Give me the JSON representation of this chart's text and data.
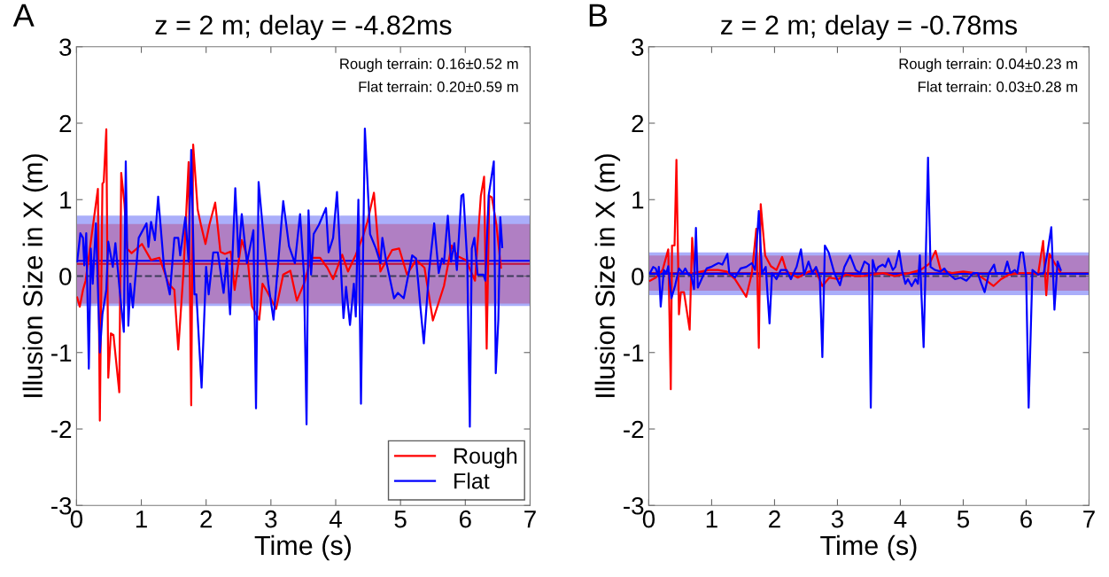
{
  "chart_data": [
    {
      "type": "line",
      "title": "z = 2 m; delay = -4.82ms",
      "xlabel": "Time (s)",
      "ylabel": "Illusion Size in X (m)",
      "annotations": [
        "A",
        "Rough terrain: 0.16±0.52 m",
        "Flat terrain: 0.20±0.59 m"
      ],
      "xlim": [
        0,
        7
      ],
      "xticks": [
        0,
        1,
        2,
        3,
        4,
        5,
        6,
        7
      ],
      "ylim": [
        -3,
        3
      ],
      "yticks": [
        -3,
        -2,
        -1,
        0,
        1,
        2,
        3
      ],
      "grid": false,
      "legend": "bottom right",
      "marker": "none",
      "line_style": "solid",
      "bands": [
        {
          "axis": "y",
          "from": -0.39,
          "to": 0.79,
          "color": "#aaaefa"
        },
        {
          "axis": "y",
          "from": -0.36,
          "to": 0.68,
          "color": "#b07fc3"
        }
      ],
      "ref_lines": [
        {
          "axis": "y",
          "value": 0,
          "color": "#3c3c5a",
          "line_style": "dashed"
        },
        {
          "axis": "y",
          "value": 0.16,
          "color": "#c0103c",
          "line_style": "solid"
        },
        {
          "axis": "y",
          "value": 0.2,
          "color": "#0000ff",
          "line_style": "solid"
        }
      ],
      "series": [
        {
          "name": "Rough",
          "color": "#ff0000",
          "x": [
            0.01,
            0.05,
            0.1,
            0.14,
            0.33,
            0.36,
            0.4,
            0.42,
            0.46,
            0.49,
            0.53,
            0.57,
            0.66,
            0.69,
            0.74,
            0.78,
            0.85,
            1.01,
            1.15,
            1.28,
            1.42,
            1.51,
            1.57,
            1.65,
            1.73,
            1.77,
            1.8,
            1.87,
            1.92,
            1.99,
            2.05,
            2.14,
            2.22,
            2.29,
            2.38,
            2.44,
            2.55,
            2.64,
            2.71,
            2.82,
            2.87,
            2.94,
            3.08,
            3.19,
            3.3,
            3.4,
            3.52,
            3.62,
            3.76,
            3.87,
            3.96,
            4.1,
            4.19,
            4.31,
            4.42,
            4.49,
            4.59,
            4.69,
            4.87,
            4.98,
            5.1,
            5.24,
            5.37,
            5.5,
            5.61,
            5.67,
            5.79,
            5.88,
            6.01,
            6.15,
            6.24,
            6.29,
            6.33,
            6.37,
            6.41,
            6.48,
            6.55
          ],
          "values": [
            -0.28,
            -0.4,
            -0.18,
            -0.06,
            1.14,
            -1.89,
            1.21,
            1.23,
            1.92,
            -1.33,
            -0.75,
            -0.77,
            -1.52,
            1.35,
            0.94,
            0.36,
            0.3,
            0.42,
            0.21,
            0.24,
            -0.1,
            -0.18,
            -0.96,
            0.05,
            1.49,
            -1.69,
            1.72,
            0.87,
            0.67,
            0.42,
            0.67,
            0.96,
            0.32,
            0.29,
            0.32,
            -0.18,
            0.47,
            0.24,
            -0.4,
            -0.57,
            -0.1,
            -0.2,
            -0.43,
            0.02,
            0.07,
            -0.32,
            -0.08,
            0.24,
            0.24,
            0.11,
            -0.04,
            0.28,
            0.06,
            0.28,
            0.52,
            0.71,
            1.09,
            0.06,
            0.34,
            0.36,
            0.02,
            0.21,
            0.11,
            -0.58,
            -0.29,
            -0.13,
            0.4,
            0.26,
            0.21,
            -0.06,
            1.05,
            1.3,
            -0.95,
            1.05,
            1.03,
            0.67,
            0.11
          ]
        },
        {
          "name": "Flat",
          "color": "#0000ff",
          "x": [
            0.01,
            0.06,
            0.1,
            0.12,
            0.15,
            0.19,
            0.22,
            0.25,
            0.3,
            0.36,
            0.4,
            0.46,
            0.49,
            0.56,
            0.6,
            0.67,
            0.73,
            0.76,
            0.8,
            0.83,
            0.87,
            0.96,
            1.08,
            1.11,
            1.15,
            1.21,
            1.26,
            1.35,
            1.44,
            1.51,
            1.57,
            1.6,
            1.68,
            1.73,
            1.77,
            1.82,
            1.85,
            1.93,
            2.0,
            2.04,
            2.11,
            2.18,
            2.27,
            2.32,
            2.37,
            2.45,
            2.5,
            2.55,
            2.63,
            2.73,
            2.77,
            2.81,
            2.87,
            2.96,
            3.04,
            3.19,
            3.28,
            3.37,
            3.45,
            3.51,
            3.55,
            3.58,
            3.62,
            3.66,
            3.74,
            3.85,
            3.89,
            3.96,
            4.02,
            4.12,
            4.16,
            4.22,
            4.28,
            4.31,
            4.35,
            4.39,
            4.45,
            4.53,
            4.62,
            4.69,
            4.72,
            4.78,
            4.9,
            4.96,
            5.05,
            5.18,
            5.24,
            5.31,
            5.36,
            5.44,
            5.52,
            5.59,
            5.64,
            5.67,
            5.73,
            5.78,
            5.83,
            5.87,
            5.94,
            5.97,
            6.03,
            6.07,
            6.1,
            6.14,
            6.19,
            6.28,
            6.31,
            6.36,
            6.44,
            6.47,
            6.51,
            6.54,
            6.57
          ],
          "values": [
            0.19,
            0.56,
            0.5,
            0.14,
            0.56,
            -1.21,
            0.36,
            -0.1,
            0.69,
            -1.0,
            -0.5,
            -0.18,
            0.45,
            0.12,
            0.43,
            -0.22,
            -0.73,
            1.5,
            -0.65,
            -0.1,
            -0.41,
            0.5,
            0.69,
            0.38,
            0.71,
            0.47,
            1.04,
            0.12,
            -0.24,
            0.5,
            0.5,
            0.27,
            0.77,
            0.19,
            1.65,
            -0.24,
            -0.24,
            -1.46,
            0.12,
            -0.24,
            0.31,
            0.31,
            -0.22,
            0.23,
            -0.5,
            1.15,
            0.25,
            0.81,
            0.17,
            0.6,
            -1.73,
            1.23,
            0.67,
            -0.1,
            -0.57,
            0.98,
            0.39,
            0.17,
            0.81,
            0.02,
            -1.94,
            0.86,
            0.02,
            0.55,
            0.67,
            0.89,
            0.31,
            0.5,
            1.1,
            -0.55,
            -0.14,
            -0.64,
            -0.1,
            -0.53,
            1.0,
            -1.67,
            1.93,
            0.55,
            0.36,
            0.17,
            0.5,
            0.19,
            -0.29,
            -0.22,
            -0.29,
            0.27,
            0.23,
            -0.43,
            -0.88,
            0.06,
            0.69,
            0.04,
            0.23,
            0.17,
            0.79,
            0.19,
            0.43,
            0.08,
            1.05,
            1.07,
            0.19,
            -1.97,
            0.36,
            0.5,
            0.02,
            0.02,
            -0.06,
            1.05,
            1.5,
            -1.27,
            -0.57,
            0.77,
            0.38
          ]
        }
      ]
    },
    {
      "type": "line",
      "title": "z = 2 m; delay = -0.78ms",
      "xlabel": "Time (s)",
      "ylabel": "Illusion Size in X (m)",
      "annotations": [
        "B",
        "Rough terrain: 0.04±0.23 m",
        "Flat terrain: 0.03±0.28 m"
      ],
      "xlim": [
        0,
        7
      ],
      "xticks": [
        0,
        1,
        2,
        3,
        4,
        5,
        6,
        7
      ],
      "ylim": [
        -3,
        3
      ],
      "yticks": [
        -3,
        -2,
        -1,
        0,
        1,
        2,
        3
      ],
      "grid": false,
      "marker": "none",
      "line_style": "solid",
      "bands": [
        {
          "axis": "y",
          "from": -0.25,
          "to": 0.31,
          "color": "#aaaefa"
        },
        {
          "axis": "y",
          "from": -0.19,
          "to": 0.27,
          "color": "#b07fc3"
        }
      ],
      "ref_lines": [
        {
          "axis": "y",
          "value": 0,
          "color": "#3c3c5a",
          "line_style": "dashed"
        },
        {
          "axis": "y",
          "value": 0.04,
          "color": "#c0103c",
          "line_style": "solid"
        },
        {
          "axis": "y",
          "value": 0.03,
          "color": "#0000ff",
          "line_style": "solid"
        }
      ],
      "series": [
        {
          "color": "#ff0000",
          "x": [
            0.02,
            0.11,
            0.22,
            0.31,
            0.35,
            0.37,
            0.41,
            0.44,
            0.48,
            0.51,
            0.56,
            0.65,
            0.69,
            0.73,
            0.83,
            0.96,
            1.1,
            1.24,
            1.37,
            1.55,
            1.64,
            1.71,
            1.75,
            1.78,
            1.85,
            1.94,
            2.03,
            2.12,
            2.19,
            2.37,
            2.55,
            2.65,
            2.76,
            2.87,
            3.01,
            3.14,
            3.28,
            3.41,
            3.55,
            3.73,
            3.91,
            4.14,
            4.32,
            4.46,
            4.56,
            4.64,
            4.82,
            5.0,
            5.19,
            5.37,
            5.48,
            5.6,
            5.73,
            5.92,
            6.1,
            6.19,
            6.27,
            6.32,
            6.37,
            6.46,
            6.54
          ],
          "values": [
            -0.06,
            -0.02,
            0.08,
            0.35,
            -1.48,
            0.4,
            0.4,
            1.52,
            -0.5,
            -0.21,
            -0.21,
            -0.7,
            0.5,
            0.04,
            0.06,
            0.08,
            0.08,
            0.06,
            -0.04,
            -0.27,
            0.04,
            0.62,
            -0.94,
            0.94,
            0.27,
            0.13,
            0.08,
            0.25,
            0.06,
            -0.02,
            0.06,
            0.08,
            -0.13,
            -0.02,
            -0.04,
            0.02,
            0.0,
            0.0,
            0.02,
            0.04,
            0.0,
            0.04,
            0.08,
            0.16,
            0.33,
            0.08,
            0.04,
            0.06,
            0.04,
            -0.06,
            -0.13,
            -0.04,
            0.02,
            0.04,
            0.04,
            0.02,
            0.46,
            -0.25,
            0.29,
            0.16,
            0.06
          ]
        },
        {
          "color": "#0000ff",
          "x": [
            0.02,
            0.07,
            0.11,
            0.15,
            0.16,
            0.19,
            0.24,
            0.28,
            0.31,
            0.36,
            0.42,
            0.48,
            0.54,
            0.58,
            0.63,
            0.67,
            0.72,
            0.75,
            0.78,
            0.85,
            0.92,
            0.99,
            1.06,
            1.11,
            1.17,
            1.25,
            1.28,
            1.37,
            1.46,
            1.55,
            1.64,
            1.69,
            1.75,
            1.8,
            1.86,
            1.92,
            1.96,
            2.03,
            2.1,
            2.19,
            2.26,
            2.35,
            2.42,
            2.47,
            2.54,
            2.6,
            2.66,
            2.72,
            2.76,
            2.8,
            2.86,
            2.95,
            3.04,
            3.11,
            3.2,
            3.29,
            3.36,
            3.43,
            3.5,
            3.53,
            3.56,
            3.61,
            3.65,
            3.72,
            3.76,
            3.81,
            3.88,
            3.92,
            3.98,
            4.03,
            4.08,
            4.12,
            4.18,
            4.24,
            4.28,
            4.31,
            4.37,
            4.4,
            4.44,
            4.48,
            4.55,
            4.64,
            4.7,
            4.75,
            4.87,
            4.96,
            5.05,
            5.16,
            5.23,
            5.28,
            5.34,
            5.41,
            5.49,
            5.52,
            5.59,
            5.65,
            5.7,
            5.75,
            5.82,
            5.86,
            5.91,
            5.95,
            6.0,
            6.04,
            6.1,
            6.19,
            6.28,
            6.34,
            6.4,
            6.45,
            6.5,
            6.55
          ],
          "values": [
            0.04,
            0.12,
            0.1,
            0.0,
            0.12,
            -0.4,
            0.08,
            0.04,
            0.13,
            -0.29,
            -0.12,
            0.1,
            0.04,
            0.1,
            0.02,
            0.02,
            -0.17,
            0.63,
            -0.15,
            -0.02,
            0.1,
            0.12,
            0.15,
            0.17,
            0.15,
            0.29,
            0.04,
            -0.02,
            0.1,
            0.12,
            0.17,
            0.08,
            0.85,
            0.04,
            0.12,
            -0.62,
            0.04,
            -0.04,
            0.08,
            0.08,
            -0.04,
            0.12,
            0.35,
            0.02,
            0.19,
            0.04,
            0.12,
            -0.02,
            -1.06,
            0.4,
            0.31,
            0.04,
            -0.12,
            0.12,
            0.27,
            0.08,
            0.04,
            0.19,
            0.15,
            -1.72,
            0.21,
            0.06,
            0.12,
            0.15,
            0.12,
            0.23,
            0.08,
            0.12,
            0.33,
            0.06,
            -0.1,
            -0.04,
            -0.13,
            -0.04,
            -0.1,
            0.27,
            -0.93,
            0.08,
            1.55,
            0.12,
            0.08,
            0.06,
            0.1,
            0.04,
            -0.04,
            -0.02,
            -0.06,
            0.04,
            0.04,
            -0.08,
            -0.21,
            0.04,
            0.15,
            0.04,
            0.04,
            0.04,
            0.19,
            0.04,
            0.08,
            0.04,
            0.31,
            0.31,
            0.0,
            -1.72,
            0.08,
            0.02,
            0.04,
            0.31,
            0.64,
            -0.44,
            0.19,
            0.08
          ]
        }
      ]
    }
  ]
}
